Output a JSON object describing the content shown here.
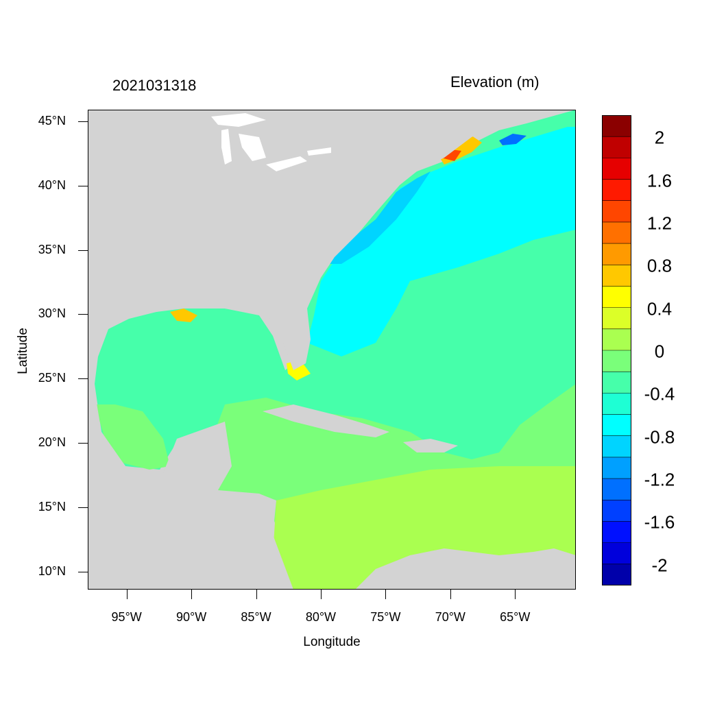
{
  "header": {
    "timestamp": "2021031318",
    "variable": "Elevation (m)"
  },
  "axes": {
    "x_title": "Longitude",
    "y_title": "Latitude",
    "x_ticks": [
      "95°W",
      "90°W",
      "85°W",
      "80°W",
      "75°W",
      "70°W",
      "65°W"
    ],
    "x_tick_values": [
      -95,
      -90,
      -85,
      -80,
      -75,
      -70,
      -65
    ],
    "y_ticks": [
      "45°N",
      "40°N",
      "35°N",
      "30°N",
      "25°N",
      "20°N",
      "15°N",
      "10°N"
    ],
    "y_tick_values": [
      45,
      40,
      35,
      30,
      25,
      20,
      15,
      10
    ],
    "lon_range": [
      -98,
      -60.3
    ],
    "lat_range": [
      8.6,
      45.9
    ]
  },
  "colorbar": {
    "labels": [
      "2",
      "1.6",
      "1.2",
      "0.8",
      "0.4",
      "0",
      "-0.4",
      "-0.8",
      "-1.2",
      "-1.6",
      "-2"
    ],
    "colors_top_to_bottom": [
      "#8b0000",
      "#c00000",
      "#e60000",
      "#ff1a00",
      "#ff4600",
      "#ff7000",
      "#ff9a00",
      "#ffc800",
      "#ffff00",
      "#dcff28",
      "#aaff50",
      "#7aff7a",
      "#46ffaa",
      "#1effd4",
      "#00ffff",
      "#00d4ff",
      "#00a0ff",
      "#0070ff",
      "#0040ff",
      "#0010ff",
      "#0000dc",
      "#0000aa"
    ]
  },
  "colors": {
    "land": "#d3d3d3",
    "lakes": "#ffffff"
  }
}
